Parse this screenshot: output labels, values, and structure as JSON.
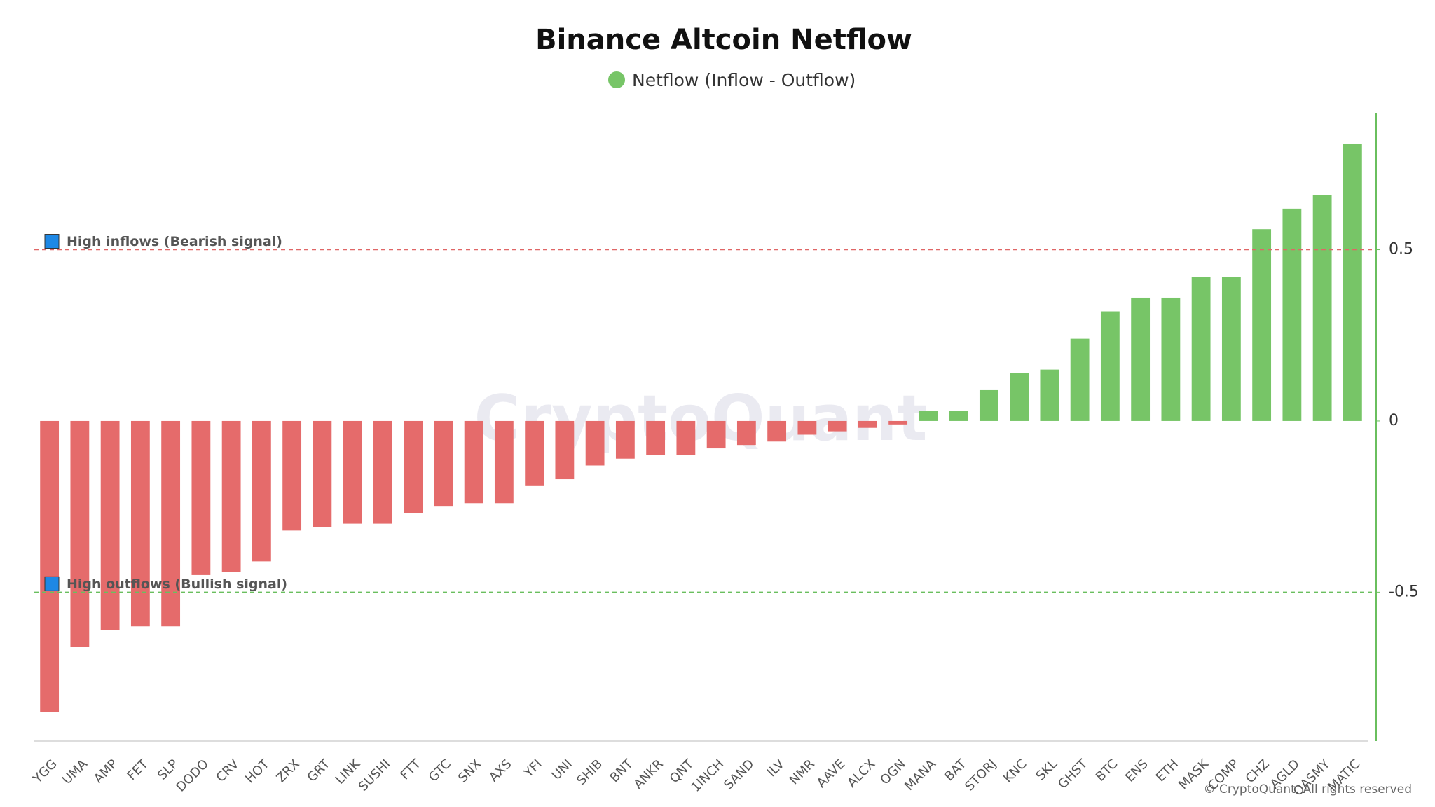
{
  "chart_data": {
    "type": "bar",
    "title": "Binance Altcoin Netflow",
    "categories": [
      "YGG",
      "UMA",
      "AMP",
      "FET",
      "SLP",
      "DODO",
      "CRV",
      "HOT",
      "ZRX",
      "GRT",
      "LINK",
      "SUSHI",
      "FTT",
      "GTC",
      "SNX",
      "AXS",
      "YFI",
      "UNI",
      "SHIB",
      "BNT",
      "ANKR",
      "QNT",
      "1INCH",
      "SAND",
      "ILV",
      "NMR",
      "AAVE",
      "ALCX",
      "OGN",
      "MANA",
      "BAT",
      "STORJ",
      "KNC",
      "SKL",
      "GHST",
      "BTC",
      "ENS",
      "ETH",
      "MASK",
      "COMP",
      "CHZ",
      "AGLD",
      "QASMY",
      "MATIC"
    ],
    "series": [
      {
        "name": "Netflow (Inflow - Outflow)",
        "color": "#77c567",
        "negative_color": "#e56b6b",
        "values": [
          -0.85,
          -0.66,
          -0.61,
          -0.6,
          -0.6,
          -0.45,
          -0.44,
          -0.41,
          -0.32,
          -0.31,
          -0.3,
          -0.3,
          -0.27,
          -0.25,
          -0.24,
          -0.24,
          -0.19,
          -0.17,
          -0.13,
          -0.11,
          -0.1,
          -0.1,
          -0.08,
          -0.07,
          -0.06,
          -0.04,
          -0.03,
          -0.02,
          -0.01,
          0.03,
          0.03,
          0.09,
          0.14,
          0.15,
          0.24,
          0.32,
          0.36,
          0.36,
          0.42,
          0.42,
          0.56,
          0.62,
          0.66,
          0.81
        ]
      }
    ],
    "ylim": [
      -0.935,
      0.9
    ],
    "yticks": [
      -0.5,
      0,
      0.5
    ],
    "y_axis_side": "right",
    "grid": false,
    "annotations": [
      {
        "value": 0.5,
        "label": "High inflows (Bearish signal)",
        "color": "#e06666"
      },
      {
        "value": -0.5,
        "label": "High outflows (Bullish signal)",
        "color": "#6abf5e"
      }
    ],
    "watermark": "CryptoQuant",
    "footer": "© CryptoQuant. All rights reserved"
  }
}
